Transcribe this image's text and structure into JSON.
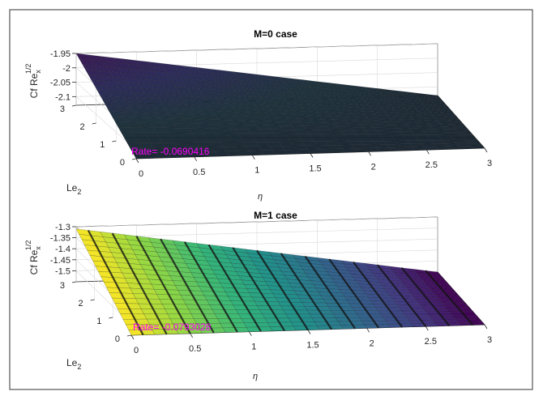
{
  "figure": {
    "frame_color": "#262626",
    "axis_color": "#262626",
    "grid_color": "#d9d9d9",
    "annotation_color": "#ff00ff"
  },
  "chart_data": [
    {
      "type": "surface",
      "title": "M=0 case",
      "zlabel": "Cf Re",
      "zlabel_sub": "x",
      "zlabel_sup": "1/2",
      "xlabel": "η",
      "ylabel": "Le",
      "ylabel_sub": "2",
      "x_ticks": [
        "0",
        "0.5",
        "1",
        "1.5",
        "2",
        "2.5",
        "3"
      ],
      "y_ticks": [
        "0",
        "1",
        "2",
        "3"
      ],
      "z_ticks": [
        "-1.95",
        "-2",
        "-2.05",
        "-2.1"
      ],
      "xlim": [
        0,
        3
      ],
      "ylim": [
        0,
        3
      ],
      "zlim": [
        -2.13,
        -1.95
      ],
      "surface_corners": {
        "at_x0_y3": -1.95,
        "at_x0_y0": -2.13,
        "at_x3_y3": -2.13,
        "at_x3_y0": -2.13
      },
      "colormap": [
        "#3b1a55",
        "#2d2d5a",
        "#20343e",
        "#1e2a35"
      ],
      "annotation": "Rate= -0.0690416",
      "grid": true
    },
    {
      "type": "surface",
      "title": "M=1 case",
      "zlabel": "Cf Re",
      "zlabel_sub": "x",
      "zlabel_sup": "1/2",
      "xlabel": "η",
      "ylabel": "Le",
      "ylabel_sub": "2",
      "x_ticks": [
        "0",
        "0.5",
        "1",
        "1.5",
        "2",
        "2.5",
        "3"
      ],
      "y_ticks": [
        "0",
        "1",
        "2",
        "3"
      ],
      "z_ticks": [
        "-1.3",
        "-1.35",
        "-1.4",
        "-1.45",
        "-1.5"
      ],
      "xlim": [
        0,
        3
      ],
      "ylim": [
        0,
        3
      ],
      "zlim": [
        -1.55,
        -1.3
      ],
      "surface_corners": {
        "at_x0_y3": -1.31,
        "at_x0_y0": -1.55,
        "at_x3_y3": -1.55,
        "at_x3_y0": -1.55
      },
      "colormap": [
        "#fde725",
        "#8fd744",
        "#35b779",
        "#21918c",
        "#31688e",
        "#443983",
        "#440154"
      ],
      "annotation": "Rate= -0.0793028",
      "grid": true
    }
  ]
}
